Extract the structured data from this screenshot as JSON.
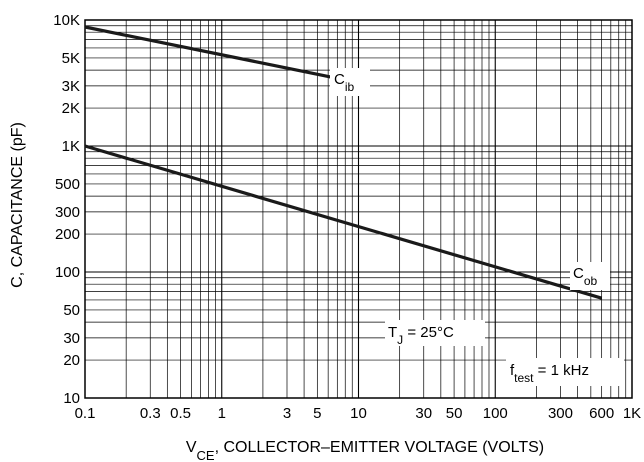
{
  "chart_data": {
    "type": "line",
    "x_scale": "log",
    "y_scale": "log",
    "xlim": [
      0.1,
      1000
    ],
    "ylim": [
      10,
      10000
    ],
    "grid": true,
    "xlabel": {
      "prefix": "V",
      "sub": "CE",
      "suffix": ", COLLECTOR–EMITTER VOLTAGE (VOLTS)"
    },
    "ylabel": "C, CAPACITANCE (pF)",
    "x_ticks": [
      {
        "value": 0.1,
        "label": "0.1"
      },
      {
        "value": 0.3,
        "label": "0.3"
      },
      {
        "value": 0.5,
        "label": "0.5"
      },
      {
        "value": 1,
        "label": "1"
      },
      {
        "value": 3,
        "label": "3"
      },
      {
        "value": 5,
        "label": "5"
      },
      {
        "value": 10,
        "label": "10"
      },
      {
        "value": 30,
        "label": "30"
      },
      {
        "value": 50,
        "label": "50"
      },
      {
        "value": 100,
        "label": "100"
      },
      {
        "value": 300,
        "label": "300"
      },
      {
        "value": 600,
        "label": "600"
      },
      {
        "value": 1000,
        "label": "1K"
      }
    ],
    "y_ticks": [
      {
        "value": 10,
        "label": "10"
      },
      {
        "value": 20,
        "label": "20"
      },
      {
        "value": 30,
        "label": "30"
      },
      {
        "value": 50,
        "label": "50"
      },
      {
        "value": 100,
        "label": "100"
      },
      {
        "value": 200,
        "label": "200"
      },
      {
        "value": 300,
        "label": "300"
      },
      {
        "value": 500,
        "label": "500"
      },
      {
        "value": 1000,
        "label": "1K"
      },
      {
        "value": 2000,
        "label": "2K"
      },
      {
        "value": 3000,
        "label": "3K"
      },
      {
        "value": 5000,
        "label": "5K"
      },
      {
        "value": 10000,
        "label": "10K"
      }
    ],
    "series": [
      {
        "key": "cib",
        "label_main": "C",
        "label_sub": "ib",
        "x": [
          0.1,
          6.5
        ],
        "y": [
          8800,
          3500
        ]
      },
      {
        "key": "cob",
        "label_main": "C",
        "label_sub": "ob",
        "x": [
          0.1,
          600
        ],
        "y": [
          1000,
          62
        ]
      }
    ],
    "annotations": [
      {
        "main": "T",
        "sub": "J",
        "suffix": " = 25°C"
      },
      {
        "main": "f",
        "sub": "test",
        "suffix": " = 1 kHz"
      }
    ],
    "colors": {
      "line": "#1a1a1a",
      "grid": "#000000",
      "background": "#ffffff"
    }
  }
}
